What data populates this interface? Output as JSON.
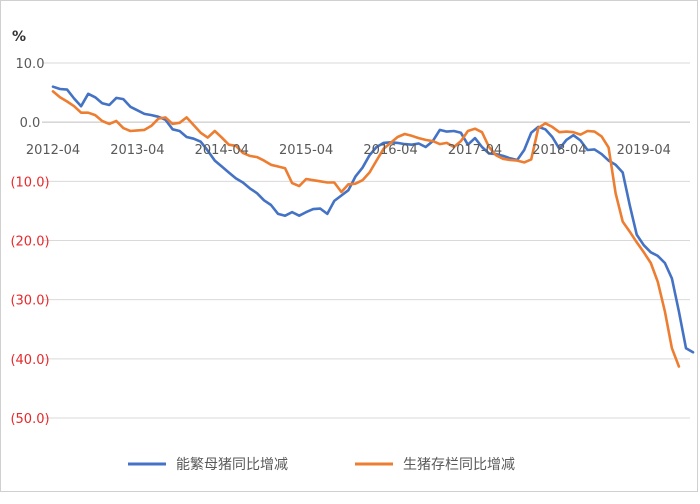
{
  "chart_data": {
    "type": "line",
    "unit": "%",
    "xticks": [
      "2012-04",
      "2013-04",
      "2014-04",
      "2015-04",
      "2016-04",
      "2017-04",
      "2018-04",
      "2019-04"
    ],
    "ylim": [
      -50,
      10
    ],
    "yticks": [
      10,
      0,
      -10,
      -20,
      -30,
      -40,
      -50
    ],
    "ytick_labels": [
      "10.0",
      "0.0",
      "(10.0)",
      "(20.0)",
      "(30.0)",
      "(40.0)",
      "(50.0)"
    ],
    "grid": true,
    "legend_position": "bottom",
    "negative_label_color": "#e8292b",
    "series": [
      {
        "name": "能繁母猪同比增减",
        "color": "#4472c4",
        "points": [
          [
            0,
            6.0
          ],
          [
            1,
            5.6
          ],
          [
            2,
            5.5
          ],
          [
            3,
            4.0
          ],
          [
            4,
            2.7
          ],
          [
            5,
            4.8
          ],
          [
            6,
            4.2
          ],
          [
            7,
            3.2
          ],
          [
            8,
            2.9
          ],
          [
            9,
            4.1
          ],
          [
            10,
            3.9
          ],
          [
            11,
            2.6
          ],
          [
            12,
            2.0
          ],
          [
            13,
            1.4
          ],
          [
            14,
            1.2
          ],
          [
            15,
            0.9
          ],
          [
            16,
            0.4
          ],
          [
            17,
            -1.2
          ],
          [
            18,
            -1.5
          ],
          [
            19,
            -2.5
          ],
          [
            20,
            -2.8
          ],
          [
            21,
            -3.3
          ],
          [
            22,
            -4.8
          ],
          [
            23,
            -6.5
          ],
          [
            24,
            -7.5
          ],
          [
            25,
            -8.5
          ],
          [
            26,
            -9.5
          ],
          [
            27,
            -10.2
          ],
          [
            28,
            -11.2
          ],
          [
            29,
            -12.0
          ],
          [
            30,
            -13.2
          ],
          [
            31,
            -14.0
          ],
          [
            32,
            -15.5
          ],
          [
            33,
            -15.8
          ],
          [
            34,
            -15.2
          ],
          [
            35,
            -15.8
          ],
          [
            36,
            -15.2
          ],
          [
            37,
            -14.7
          ],
          [
            38,
            -14.6
          ],
          [
            39,
            -15.5
          ],
          [
            40,
            -13.3
          ],
          [
            41,
            -12.4
          ],
          [
            42,
            -11.5
          ],
          [
            43,
            -9.2
          ],
          [
            44,
            -7.7
          ],
          [
            45,
            -5.6
          ],
          [
            46,
            -4.2
          ],
          [
            47,
            -3.5
          ],
          [
            48,
            -3.4
          ],
          [
            49,
            -3.5
          ],
          [
            50,
            -3.7
          ],
          [
            51,
            -3.8
          ],
          [
            52,
            -3.6
          ],
          [
            53,
            -4.2
          ],
          [
            54,
            -3.2
          ],
          [
            55,
            -1.3
          ],
          [
            56,
            -1.6
          ],
          [
            57,
            -1.5
          ],
          [
            58,
            -1.8
          ],
          [
            59,
            -3.8
          ],
          [
            60,
            -2.7
          ],
          [
            61,
            -4.2
          ],
          [
            62,
            -5.3
          ],
          [
            63,
            -5.4
          ],
          [
            64,
            -5.7
          ],
          [
            65,
            -6.1
          ],
          [
            66,
            -6.4
          ],
          [
            67,
            -4.7
          ],
          [
            68,
            -1.8
          ],
          [
            69,
            -0.8
          ],
          [
            70,
            -1.2
          ],
          [
            71,
            -2.5
          ],
          [
            72,
            -4.5
          ],
          [
            73,
            -3.0
          ],
          [
            74,
            -2.2
          ],
          [
            75,
            -3.1
          ],
          [
            76,
            -4.7
          ],
          [
            77,
            -4.6
          ],
          [
            78,
            -5.4
          ],
          [
            79,
            -6.5
          ],
          [
            80,
            -7.2
          ],
          [
            81,
            -8.5
          ],
          [
            82,
            -14.0
          ],
          [
            83,
            -19.0
          ],
          [
            84,
            -20.8
          ],
          [
            85,
            -22.0
          ],
          [
            86,
            -22.6
          ],
          [
            87,
            -23.8
          ],
          [
            88,
            -26.4
          ],
          [
            89,
            -32.0
          ],
          [
            90,
            -38.2
          ],
          [
            91,
            -38.9
          ]
        ]
      },
      {
        "name": "生猪存栏同比增减",
        "color": "#ed7d31",
        "points": [
          [
            0,
            5.2
          ],
          [
            1,
            4.2
          ],
          [
            2,
            3.5
          ],
          [
            3,
            2.7
          ],
          [
            4,
            1.6
          ],
          [
            5,
            1.6
          ],
          [
            6,
            1.2
          ],
          [
            7,
            0.2
          ],
          [
            8,
            -0.3
          ],
          [
            9,
            0.2
          ],
          [
            10,
            -1.0
          ],
          [
            11,
            -1.5
          ],
          [
            12,
            -1.4
          ],
          [
            13,
            -1.3
          ],
          [
            14,
            -0.6
          ],
          [
            15,
            0.6
          ],
          [
            16,
            0.8
          ],
          [
            17,
            -0.3
          ],
          [
            18,
            -0.1
          ],
          [
            19,
            0.8
          ],
          [
            20,
            -0.5
          ],
          [
            21,
            -1.8
          ],
          [
            22,
            -2.6
          ],
          [
            23,
            -1.5
          ],
          [
            24,
            -2.6
          ],
          [
            25,
            -3.8
          ],
          [
            26,
            -4.0
          ],
          [
            27,
            -5.2
          ],
          [
            28,
            -5.7
          ],
          [
            29,
            -5.9
          ],
          [
            30,
            -6.5
          ],
          [
            31,
            -7.2
          ],
          [
            32,
            -7.5
          ],
          [
            33,
            -7.8
          ],
          [
            34,
            -10.3
          ],
          [
            35,
            -10.8
          ],
          [
            36,
            -9.6
          ],
          [
            37,
            -9.8
          ],
          [
            38,
            -10.0
          ],
          [
            39,
            -10.2
          ],
          [
            40,
            -10.2
          ],
          [
            41,
            -11.8
          ],
          [
            42,
            -10.5
          ],
          [
            43,
            -10.4
          ],
          [
            44,
            -9.8
          ],
          [
            45,
            -8.5
          ],
          [
            46,
            -6.5
          ],
          [
            47,
            -4.5
          ],
          [
            48,
            -3.5
          ],
          [
            49,
            -2.5
          ],
          [
            50,
            -2.0
          ],
          [
            51,
            -2.3
          ],
          [
            52,
            -2.7
          ],
          [
            53,
            -3.0
          ],
          [
            54,
            -3.2
          ],
          [
            55,
            -3.7
          ],
          [
            56,
            -3.5
          ],
          [
            57,
            -4.2
          ],
          [
            58,
            -3.2
          ],
          [
            59,
            -1.5
          ],
          [
            60,
            -1.1
          ],
          [
            61,
            -1.7
          ],
          [
            62,
            -4.2
          ],
          [
            63,
            -5.6
          ],
          [
            64,
            -6.2
          ],
          [
            65,
            -6.4
          ],
          [
            66,
            -6.5
          ],
          [
            67,
            -6.8
          ],
          [
            68,
            -6.3
          ],
          [
            69,
            -1.0
          ],
          [
            70,
            -0.2
          ],
          [
            71,
            -0.8
          ],
          [
            72,
            -1.7
          ],
          [
            73,
            -1.6
          ],
          [
            74,
            -1.7
          ],
          [
            75,
            -2.1
          ],
          [
            76,
            -1.5
          ],
          [
            77,
            -1.6
          ],
          [
            78,
            -2.4
          ],
          [
            79,
            -4.3
          ],
          [
            80,
            -12.0
          ],
          [
            81,
            -16.8
          ],
          [
            82,
            -18.5
          ],
          [
            83,
            -20.3
          ],
          [
            84,
            -22.0
          ],
          [
            85,
            -23.8
          ],
          [
            86,
            -27.0
          ],
          [
            87,
            -32.0
          ],
          [
            88,
            -38.2
          ],
          [
            89,
            -41.3
          ]
        ]
      }
    ]
  }
}
